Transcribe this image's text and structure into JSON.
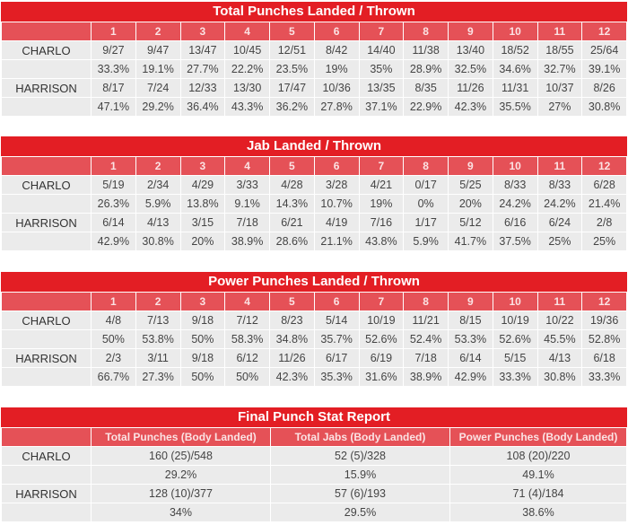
{
  "tables": [
    {
      "title": "Total Punches Landed / Thrown",
      "rounds": [
        "1",
        "2",
        "3",
        "4",
        "5",
        "6",
        "7",
        "8",
        "9",
        "10",
        "11",
        "12"
      ],
      "fighters": [
        {
          "name": "CHARLO",
          "landed_thrown": [
            "9/27",
            "9/47",
            "13/47",
            "10/45",
            "12/51",
            "8/42",
            "14/40",
            "11/38",
            "13/40",
            "18/52",
            "18/55",
            "25/64"
          ],
          "pct": [
            "33.3%",
            "19.1%",
            "27.7%",
            "22.2%",
            "23.5%",
            "19%",
            "35%",
            "28.9%",
            "32.5%",
            "34.6%",
            "32.7%",
            "39.1%"
          ]
        },
        {
          "name": "HARRISON",
          "landed_thrown": [
            "8/17",
            "7/24",
            "12/33",
            "13/30",
            "17/47",
            "10/36",
            "13/35",
            "8/35",
            "11/26",
            "11/31",
            "10/37",
            "8/26"
          ],
          "pct": [
            "47.1%",
            "29.2%",
            "36.4%",
            "43.3%",
            "36.2%",
            "27.8%",
            "37.1%",
            "22.9%",
            "42.3%",
            "35.5%",
            "27%",
            "30.8%"
          ]
        }
      ]
    },
    {
      "title": "Jab Landed / Thrown",
      "rounds": [
        "1",
        "2",
        "3",
        "4",
        "5",
        "6",
        "7",
        "8",
        "9",
        "10",
        "11",
        "12"
      ],
      "fighters": [
        {
          "name": "CHARLO",
          "landed_thrown": [
            "5/19",
            "2/34",
            "4/29",
            "3/33",
            "4/28",
            "3/28",
            "4/21",
            "0/17",
            "5/25",
            "8/33",
            "8/33",
            "6/28"
          ],
          "pct": [
            "26.3%",
            "5.9%",
            "13.8%",
            "9.1%",
            "14.3%",
            "10.7%",
            "19%",
            "0%",
            "20%",
            "24.2%",
            "24.2%",
            "21.4%"
          ]
        },
        {
          "name": "HARRISON",
          "landed_thrown": [
            "6/14",
            "4/13",
            "3/15",
            "7/18",
            "6/21",
            "4/19",
            "7/16",
            "1/17",
            "5/12",
            "6/16",
            "6/24",
            "2/8"
          ],
          "pct": [
            "42.9%",
            "30.8%",
            "20%",
            "38.9%",
            "28.6%",
            "21.1%",
            "43.8%",
            "5.9%",
            "41.7%",
            "37.5%",
            "25%",
            "25%"
          ]
        }
      ]
    },
    {
      "title": "Power Punches Landed / Thrown",
      "rounds": [
        "1",
        "2",
        "3",
        "4",
        "5",
        "6",
        "7",
        "8",
        "9",
        "10",
        "11",
        "12"
      ],
      "fighters": [
        {
          "name": "CHARLO",
          "landed_thrown": [
            "4/8",
            "7/13",
            "9/18",
            "7/12",
            "8/23",
            "5/14",
            "10/19",
            "11/21",
            "8/15",
            "10/19",
            "10/22",
            "19/36"
          ],
          "pct": [
            "50%",
            "53.8%",
            "50%",
            "58.3%",
            "34.8%",
            "35.7%",
            "52.6%",
            "52.4%",
            "53.3%",
            "52.6%",
            "45.5%",
            "52.8%"
          ]
        },
        {
          "name": "HARRISON",
          "landed_thrown": [
            "2/3",
            "3/11",
            "9/18",
            "6/12",
            "11/26",
            "6/17",
            "6/19",
            "7/18",
            "6/14",
            "5/15",
            "4/13",
            "6/18"
          ],
          "pct": [
            "66.7%",
            "27.3%",
            "50%",
            "50%",
            "42.3%",
            "35.3%",
            "31.6%",
            "38.9%",
            "42.9%",
            "33.3%",
            "30.8%",
            "33.3%"
          ]
        }
      ]
    }
  ],
  "final": {
    "title": "Final Punch Stat Report",
    "columns": [
      "Total Punches (Body Landed)",
      "Total Jabs (Body Landed)",
      "Power Punches (Body Landed)"
    ],
    "fighters": [
      {
        "name": "CHARLO",
        "values": [
          "160 (25)/548",
          "52 (5)/328",
          "108 (20)/220"
        ],
        "pct": [
          "29.2%",
          "15.9%",
          "49.1%"
        ]
      },
      {
        "name": "HARRISON",
        "values": [
          "128 (10)/377",
          "57 (6)/193",
          "71 (4)/184"
        ],
        "pct": [
          "34%",
          "29.5%",
          "38.6%"
        ]
      }
    ]
  },
  "colors": {
    "title_bar": "#e31e24",
    "header_row": "#e55157",
    "cell_bg": "#ebebeb"
  },
  "chart_data": [
    {
      "type": "table",
      "title": "Total Punches Landed / Thrown",
      "categories": [
        "1",
        "2",
        "3",
        "4",
        "5",
        "6",
        "7",
        "8",
        "9",
        "10",
        "11",
        "12"
      ],
      "series": [
        {
          "name": "CHARLO",
          "landed": [
            9,
            9,
            13,
            10,
            12,
            8,
            14,
            11,
            13,
            18,
            18,
            25
          ],
          "thrown": [
            27,
            47,
            47,
            45,
            51,
            42,
            40,
            38,
            40,
            52,
            55,
            64
          ],
          "pct": [
            33.3,
            19.1,
            27.7,
            22.2,
            23.5,
            19,
            35,
            28.9,
            32.5,
            34.6,
            32.7,
            39.1
          ]
        },
        {
          "name": "HARRISON",
          "landed": [
            8,
            7,
            12,
            13,
            17,
            10,
            13,
            8,
            11,
            11,
            10,
            8
          ],
          "thrown": [
            17,
            24,
            33,
            30,
            47,
            36,
            35,
            35,
            26,
            31,
            37,
            26
          ],
          "pct": [
            47.1,
            29.2,
            36.4,
            43.3,
            36.2,
            27.8,
            37.1,
            22.9,
            42.3,
            35.5,
            27,
            30.8
          ]
        }
      ]
    },
    {
      "type": "table",
      "title": "Jab Landed / Thrown",
      "categories": [
        "1",
        "2",
        "3",
        "4",
        "5",
        "6",
        "7",
        "8",
        "9",
        "10",
        "11",
        "12"
      ],
      "series": [
        {
          "name": "CHARLO",
          "landed": [
            5,
            2,
            4,
            3,
            4,
            3,
            4,
            0,
            5,
            8,
            8,
            6
          ],
          "thrown": [
            19,
            34,
            29,
            33,
            28,
            28,
            21,
            17,
            25,
            33,
            33,
            28
          ],
          "pct": [
            26.3,
            5.9,
            13.8,
            9.1,
            14.3,
            10.7,
            19,
            0,
            20,
            24.2,
            24.2,
            21.4
          ]
        },
        {
          "name": "HARRISON",
          "landed": [
            6,
            4,
            3,
            7,
            6,
            4,
            7,
            1,
            5,
            6,
            6,
            2
          ],
          "thrown": [
            14,
            13,
            15,
            18,
            21,
            19,
            16,
            17,
            12,
            16,
            24,
            8
          ],
          "pct": [
            42.9,
            30.8,
            20,
            38.9,
            28.6,
            21.1,
            43.8,
            5.9,
            41.7,
            37.5,
            25,
            25
          ]
        }
      ]
    },
    {
      "type": "table",
      "title": "Power Punches Landed / Thrown",
      "categories": [
        "1",
        "2",
        "3",
        "4",
        "5",
        "6",
        "7",
        "8",
        "9",
        "10",
        "11",
        "12"
      ],
      "series": [
        {
          "name": "CHARLO",
          "landed": [
            4,
            7,
            9,
            7,
            8,
            5,
            10,
            11,
            8,
            10,
            10,
            19
          ],
          "thrown": [
            8,
            13,
            18,
            12,
            23,
            14,
            19,
            21,
            15,
            19,
            22,
            36
          ],
          "pct": [
            50,
            53.8,
            50,
            58.3,
            34.8,
            35.7,
            52.6,
            52.4,
            53.3,
            52.6,
            45.5,
            52.8
          ]
        },
        {
          "name": "HARRISON",
          "landed": [
            2,
            3,
            9,
            6,
            11,
            6,
            6,
            7,
            6,
            5,
            4,
            6
          ],
          "thrown": [
            3,
            11,
            18,
            12,
            26,
            17,
            19,
            18,
            14,
            15,
            13,
            18
          ],
          "pct": [
            66.7,
            27.3,
            50,
            50,
            42.3,
            35.3,
            31.6,
            38.9,
            42.9,
            33.3,
            30.8,
            33.3
          ]
        }
      ]
    },
    {
      "type": "table",
      "title": "Final Punch Stat Report",
      "categories": [
        "Total Punches (Body Landed)",
        "Total Jabs (Body Landed)",
        "Power Punches (Body Landed)"
      ],
      "series": [
        {
          "name": "CHARLO",
          "landed": [
            160,
            52,
            108
          ],
          "body_landed": [
            25,
            5,
            20
          ],
          "thrown": [
            548,
            328,
            220
          ],
          "pct": [
            29.2,
            15.9,
            49.1
          ]
        },
        {
          "name": "HARRISON",
          "landed": [
            128,
            57,
            71
          ],
          "body_landed": [
            10,
            6,
            4
          ],
          "thrown": [
            377,
            193,
            184
          ],
          "pct": [
            34,
            29.5,
            38.6
          ]
        }
      ]
    }
  ]
}
